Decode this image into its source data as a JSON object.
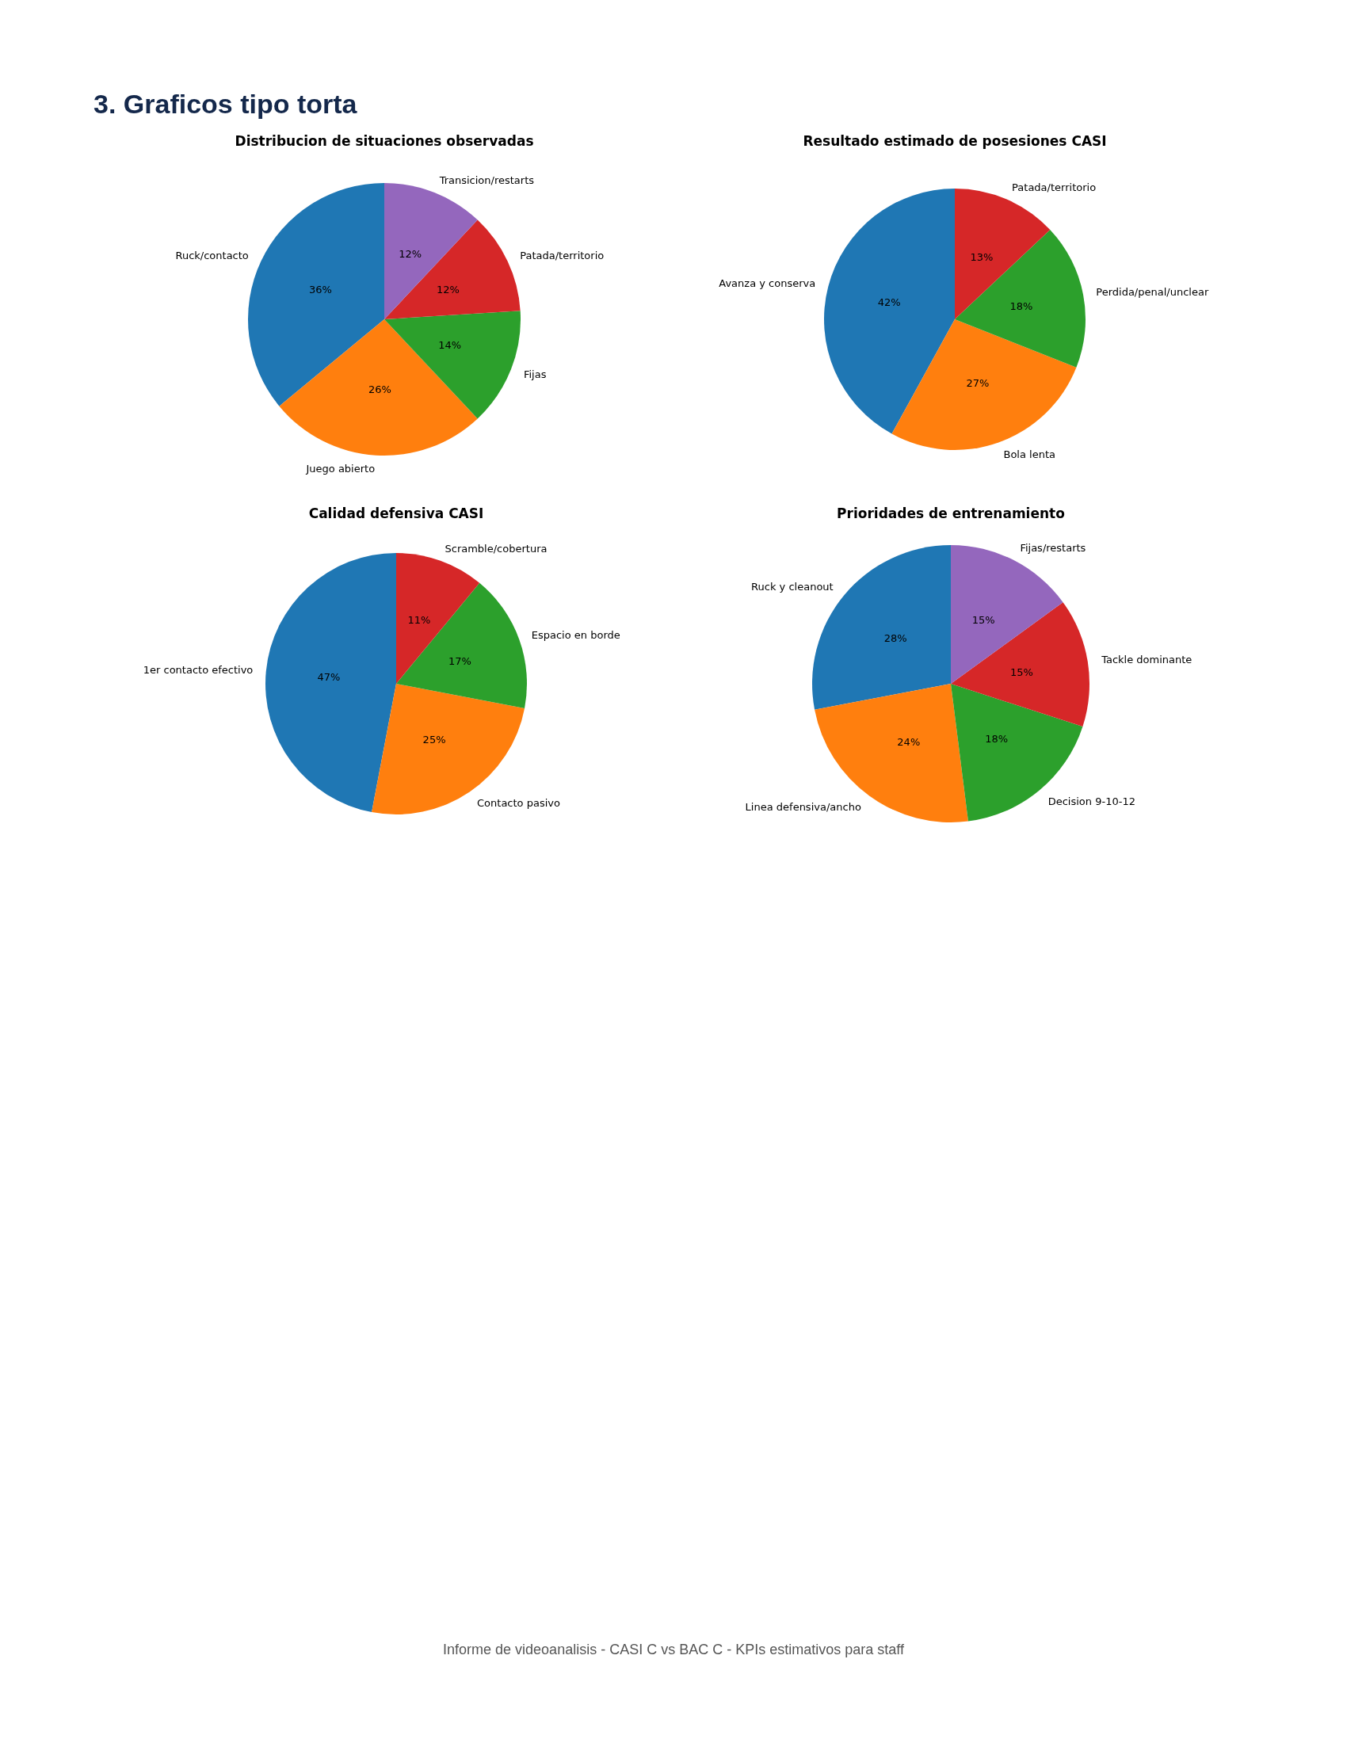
{
  "chart_data": [
    {
      "type": "pie",
      "title": "Distribucion de situaciones observadas",
      "annotations": [
        "3. Graficos tipo torta"
      ],
      "categories": [
        "Ruck/contacto",
        "Juego abierto",
        "Fijas",
        "Patada/territorio",
        "Transicion/restarts"
      ],
      "values": [
        36,
        26,
        14,
        12,
        12
      ],
      "value_labels": [
        "36%",
        "26%",
        "14%",
        "12%",
        "12%"
      ],
      "colors": [
        "#1f77b4",
        "#ff7f0e",
        "#2ca02c",
        "#d62728",
        "#9467bd"
      ],
      "legend": false
    },
    {
      "type": "pie",
      "title": "Resultado estimado de posesiones CASI",
      "categories": [
        "Avanza y conserva",
        "Bola lenta",
        "Perdida/penal/unclear",
        "Patada/territorio"
      ],
      "values": [
        42,
        27,
        18,
        13
      ],
      "value_labels": [
        "42%",
        "27%",
        "18%",
        "13%"
      ],
      "colors": [
        "#1f77b4",
        "#ff7f0e",
        "#2ca02c",
        "#d62728"
      ],
      "legend": false
    },
    {
      "type": "pie",
      "title": "Calidad defensiva CASI",
      "categories": [
        "1er contacto efectivo",
        "Contacto pasivo",
        "Espacio en borde",
        "Scramble/cobertura"
      ],
      "values": [
        47,
        25,
        17,
        11
      ],
      "value_labels": [
        "47%",
        "25%",
        "17%",
        "11%"
      ],
      "colors": [
        "#1f77b4",
        "#ff7f0e",
        "#2ca02c",
        "#d62728"
      ],
      "legend": false
    },
    {
      "type": "pie",
      "title": "Prioridades de entrenamiento",
      "annotations": [
        "Informe de videoanalisis - CASI C vs BAC C - KPIs estimativos para staff"
      ],
      "categories": [
        "Ruck y cleanout",
        "Linea defensiva/ancho",
        "Decision 9-10-12",
        "Tackle dominante",
        "Fijas/restarts"
      ],
      "values": [
        28,
        24,
        18,
        15,
        15
      ],
      "value_labels": [
        "28%",
        "24%",
        "18%",
        "15%",
        "15%"
      ],
      "colors": [
        "#1f77b4",
        "#ff7f0e",
        "#2ca02c",
        "#d62728",
        "#9467bd"
      ],
      "legend": false
    }
  ]
}
